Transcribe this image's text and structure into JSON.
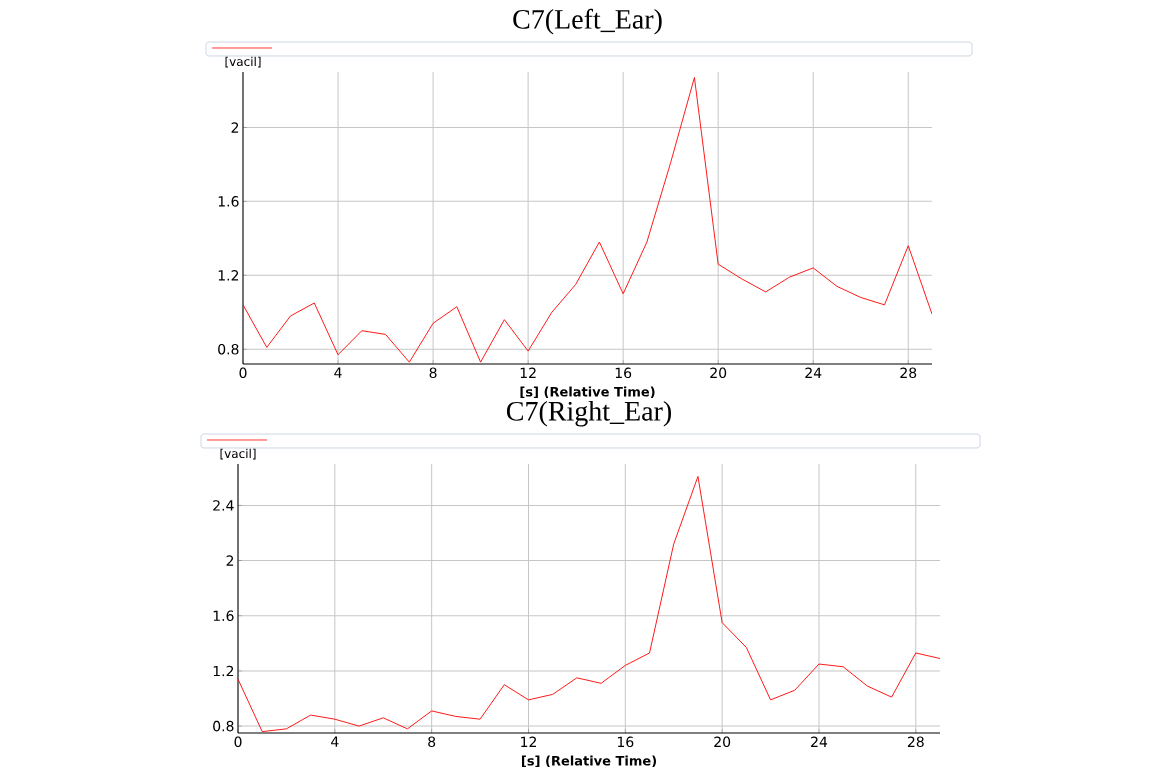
{
  "chart_data": [
    {
      "type": "line",
      "title": "C7(Left_Ear)",
      "xlabel": "[s] (Relative Time)",
      "ylabel": "[vacil]",
      "x": [
        0,
        1,
        2,
        3,
        4,
        5,
        6,
        7,
        8,
        9,
        10,
        11,
        12,
        13,
        14,
        15,
        16,
        17,
        18,
        19,
        20,
        21,
        22,
        23,
        24,
        25,
        26,
        27,
        28,
        29
      ],
      "series": [
        {
          "color": "#ff0000",
          "values": [
            1.04,
            0.81,
            0.98,
            1.05,
            0.77,
            0.9,
            0.88,
            0.73,
            0.94,
            1.03,
            0.73,
            0.96,
            0.79,
            1.0,
            1.15,
            1.38,
            1.1,
            1.38,
            1.81,
            2.27,
            1.26,
            1.18,
            1.11,
            1.19,
            1.24,
            1.14,
            1.08,
            1.04,
            1.36,
            0.99
          ]
        }
      ],
      "xlim": [
        0,
        29
      ],
      "ylim": [
        0.72,
        2.3
      ],
      "xticks": [
        0,
        4,
        8,
        12,
        16,
        20,
        24,
        28
      ],
      "yticks": [
        0.8,
        1.2,
        1.6,
        2
      ],
      "grid": true
    },
    {
      "type": "line",
      "title": "C7(Right_Ear)",
      "xlabel": "[s] (Relative Time)",
      "ylabel": "[vacil]",
      "x": [
        0,
        1,
        2,
        3,
        4,
        5,
        6,
        7,
        8,
        9,
        10,
        11,
        12,
        13,
        14,
        15,
        16,
        17,
        18,
        19,
        20,
        21,
        22,
        23,
        24,
        25,
        26,
        27,
        28,
        29
      ],
      "series": [
        {
          "color": "#ff0000",
          "values": [
            1.14,
            0.76,
            0.78,
            0.88,
            0.85,
            0.8,
            0.86,
            0.78,
            0.91,
            0.87,
            0.85,
            1.1,
            0.99,
            1.03,
            1.15,
            1.11,
            1.24,
            1.33,
            2.12,
            2.61,
            1.55,
            1.37,
            0.99,
            1.06,
            1.25,
            1.23,
            1.09,
            1.01,
            1.33,
            1.29
          ]
        }
      ],
      "xlim": [
        0,
        29
      ],
      "ylim": [
        0.75,
        2.7
      ],
      "xticks": [
        0,
        4,
        8,
        12,
        16,
        20,
        24,
        28
      ],
      "yticks": [
        0.8,
        1.2,
        1.6,
        2,
        2.4
      ],
      "grid": true
    }
  ]
}
